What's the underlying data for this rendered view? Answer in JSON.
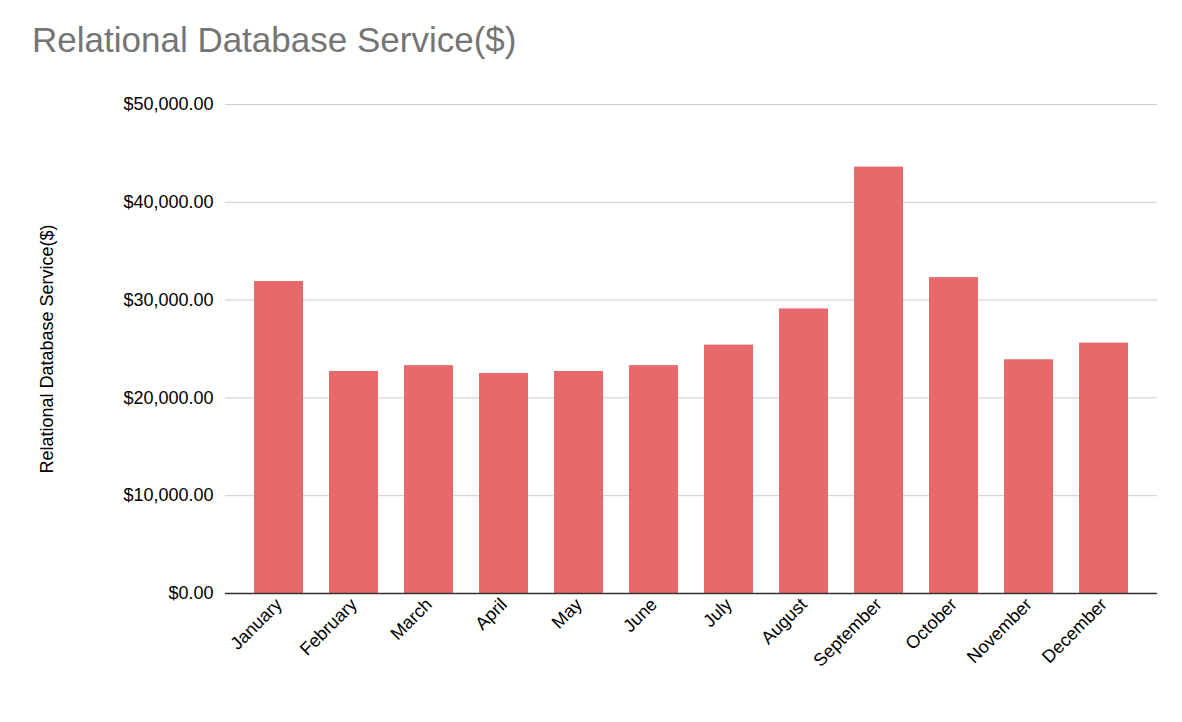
{
  "chart_data": {
    "type": "bar",
    "title": "Relational Database Service($)",
    "y_label": "Relational Database Service($)",
    "categories": [
      "January",
      "February",
      "March",
      "April",
      "May",
      "June",
      "July",
      "August",
      "September",
      "October",
      "November",
      "December"
    ],
    "values": [
      31900,
      22700,
      23300,
      22500,
      22700,
      23300,
      25400,
      29100,
      43600,
      32300,
      23900,
      25600
    ],
    "color": "#e8696b",
    "ylim": [
      0,
      50000
    ],
    "yticks": [
      {
        "value": 0,
        "label": "$0.00"
      },
      {
        "value": 10000,
        "label": "$10,000.00"
      },
      {
        "value": 20000,
        "label": "$20,000.00"
      },
      {
        "value": 30000,
        "label": "$30,000.00"
      },
      {
        "value": 40000,
        "label": "$40,000.00"
      },
      {
        "value": 50000,
        "label": "$50,000.00"
      }
    ],
    "grid": true
  }
}
